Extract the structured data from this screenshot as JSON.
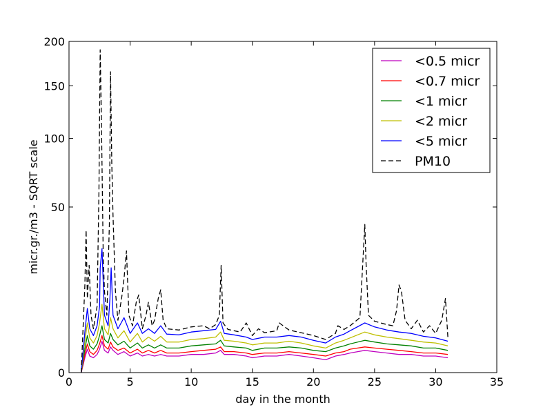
{
  "chart_data": {
    "type": "line",
    "title": "",
    "xlabel": "day in the month",
    "ylabel": "micr.gr./m3 - SQRT scale",
    "xlim": [
      0,
      35
    ],
    "ylim": [
      0,
      200
    ],
    "y_scale": "sqrt",
    "grid": false,
    "legend_position": "top-right",
    "x_ticks": [
      "0",
      "5",
      "10",
      "15",
      "20",
      "25",
      "30",
      "35"
    ],
    "y_ticks": [
      "0",
      "50",
      "100",
      "150",
      "200"
    ],
    "x_tick_values": [
      0,
      5,
      10,
      15,
      20,
      25,
      30,
      35
    ],
    "y_tick_values": [
      0,
      50,
      100,
      150,
      200
    ],
    "series": [
      {
        "name": "<0.5 micr",
        "color": "#bf00bf",
        "style": "solid",
        "points": [
          [
            1.0,
            0
          ],
          [
            1.3,
            0.4
          ],
          [
            1.5,
            1.0
          ],
          [
            1.7,
            0.5
          ],
          [
            2.0,
            0.4
          ],
          [
            2.3,
            0.6
          ],
          [
            2.5,
            1.0
          ],
          [
            2.7,
            1.8
          ],
          [
            2.9,
            0.9
          ],
          [
            3.2,
            0.7
          ],
          [
            3.4,
            1.2
          ],
          [
            3.6,
            0.9
          ],
          [
            4.0,
            0.6
          ],
          [
            4.5,
            0.8
          ],
          [
            5.0,
            0.5
          ],
          [
            5.6,
            0.7
          ],
          [
            6.0,
            0.5
          ],
          [
            6.5,
            0.6
          ],
          [
            7.0,
            0.5
          ],
          [
            7.5,
            0.6
          ],
          [
            8.0,
            0.5
          ],
          [
            9.0,
            0.5
          ],
          [
            10.0,
            0.6
          ],
          [
            11.0,
            0.6
          ],
          [
            12.0,
            0.7
          ],
          [
            12.4,
            0.9
          ],
          [
            12.7,
            0.6
          ],
          [
            13.5,
            0.6
          ],
          [
            14.5,
            0.5
          ],
          [
            15.0,
            0.4
          ],
          [
            16.0,
            0.5
          ],
          [
            17.0,
            0.5
          ],
          [
            18.0,
            0.6
          ],
          [
            19.0,
            0.5
          ],
          [
            20.0,
            0.4
          ],
          [
            21.0,
            0.3
          ],
          [
            21.8,
            0.5
          ],
          [
            22.5,
            0.6
          ],
          [
            23.0,
            0.7
          ],
          [
            24.2,
            0.9
          ],
          [
            25.0,
            0.8
          ],
          [
            26.0,
            0.7
          ],
          [
            27.0,
            0.6
          ],
          [
            28.0,
            0.6
          ],
          [
            29.0,
            0.5
          ],
          [
            30.0,
            0.5
          ],
          [
            31.0,
            0.4
          ]
        ]
      },
      {
        "name": "<0.7 micr",
        "color": "#ff0000",
        "style": "solid",
        "points": [
          [
            1.0,
            0
          ],
          [
            1.3,
            0.6
          ],
          [
            1.5,
            1.5
          ],
          [
            1.7,
            0.8
          ],
          [
            2.0,
            0.6
          ],
          [
            2.3,
            0.9
          ],
          [
            2.5,
            1.5
          ],
          [
            2.7,
            2.5
          ],
          [
            2.9,
            1.3
          ],
          [
            3.2,
            1.0
          ],
          [
            3.4,
            1.7
          ],
          [
            3.6,
            1.2
          ],
          [
            4.0,
            0.9
          ],
          [
            4.5,
            1.1
          ],
          [
            5.0,
            0.7
          ],
          [
            5.6,
            1.0
          ],
          [
            6.0,
            0.7
          ],
          [
            6.5,
            0.9
          ],
          [
            7.0,
            0.7
          ],
          [
            7.5,
            0.9
          ],
          [
            8.0,
            0.7
          ],
          [
            9.0,
            0.7
          ],
          [
            10.0,
            0.8
          ],
          [
            11.0,
            0.9
          ],
          [
            12.0,
            1.0
          ],
          [
            12.4,
            1.2
          ],
          [
            12.7,
            0.8
          ],
          [
            13.5,
            0.8
          ],
          [
            14.5,
            0.7
          ],
          [
            15.0,
            0.6
          ],
          [
            16.0,
            0.7
          ],
          [
            17.0,
            0.7
          ],
          [
            18.0,
            0.8
          ],
          [
            19.0,
            0.7
          ],
          [
            20.0,
            0.6
          ],
          [
            21.0,
            0.5
          ],
          [
            21.8,
            0.7
          ],
          [
            22.5,
            0.8
          ],
          [
            23.0,
            1.0
          ],
          [
            24.2,
            1.2
          ],
          [
            25.0,
            1.1
          ],
          [
            26.0,
            1.0
          ],
          [
            27.0,
            0.9
          ],
          [
            28.0,
            0.8
          ],
          [
            29.0,
            0.7
          ],
          [
            30.0,
            0.7
          ],
          [
            31.0,
            0.6
          ]
        ]
      },
      {
        "name": "<1 micr",
        "color": "#008000",
        "style": "solid",
        "points": [
          [
            1.0,
            0
          ],
          [
            1.3,
            1.0
          ],
          [
            1.5,
            2.5
          ],
          [
            1.7,
            1.3
          ],
          [
            2.0,
            1.0
          ],
          [
            2.3,
            1.5
          ],
          [
            2.5,
            2.5
          ],
          [
            2.7,
            4.0
          ],
          [
            2.9,
            2.0
          ],
          [
            3.2,
            1.6
          ],
          [
            3.4,
            2.8
          ],
          [
            3.6,
            2.0
          ],
          [
            4.0,
            1.4
          ],
          [
            4.5,
            1.8
          ],
          [
            5.0,
            1.1
          ],
          [
            5.6,
            1.6
          ],
          [
            6.0,
            1.1
          ],
          [
            6.5,
            1.4
          ],
          [
            7.0,
            1.1
          ],
          [
            7.5,
            1.4
          ],
          [
            8.0,
            1.1
          ],
          [
            9.0,
            1.1
          ],
          [
            10.0,
            1.3
          ],
          [
            11.0,
            1.4
          ],
          [
            12.0,
            1.5
          ],
          [
            12.4,
            1.9
          ],
          [
            12.7,
            1.3
          ],
          [
            13.5,
            1.2
          ],
          [
            14.5,
            1.1
          ],
          [
            15.0,
            0.9
          ],
          [
            16.0,
            1.1
          ],
          [
            17.0,
            1.1
          ],
          [
            18.0,
            1.2
          ],
          [
            19.0,
            1.1
          ],
          [
            20.0,
            0.9
          ],
          [
            21.0,
            0.8
          ],
          [
            21.8,
            1.1
          ],
          [
            22.5,
            1.3
          ],
          [
            23.0,
            1.5
          ],
          [
            24.2,
            1.9
          ],
          [
            25.0,
            1.7
          ],
          [
            26.0,
            1.5
          ],
          [
            27.0,
            1.4
          ],
          [
            28.0,
            1.3
          ],
          [
            29.0,
            1.1
          ],
          [
            30.0,
            1.1
          ],
          [
            31.0,
            0.9
          ]
        ]
      },
      {
        "name": "<2 micr",
        "color": "#bfbf00",
        "style": "solid",
        "points": [
          [
            1.0,
            0
          ],
          [
            1.3,
            1.8
          ],
          [
            1.5,
            4.5
          ],
          [
            1.7,
            2.2
          ],
          [
            2.0,
            1.6
          ],
          [
            2.3,
            2.5
          ],
          [
            2.5,
            4.5
          ],
          [
            2.7,
            8.5
          ],
          [
            2.9,
            3.5
          ],
          [
            3.2,
            2.6
          ],
          [
            3.4,
            5.5
          ],
          [
            3.6,
            3.5
          ],
          [
            4.0,
            2.2
          ],
          [
            4.5,
            3.2
          ],
          [
            5.0,
            1.7
          ],
          [
            5.6,
            2.8
          ],
          [
            6.0,
            1.7
          ],
          [
            6.5,
            2.3
          ],
          [
            7.0,
            1.8
          ],
          [
            7.5,
            2.4
          ],
          [
            8.0,
            1.7
          ],
          [
            9.0,
            1.7
          ],
          [
            10.0,
            2.0
          ],
          [
            11.0,
            2.1
          ],
          [
            12.0,
            2.3
          ],
          [
            12.4,
            3.0
          ],
          [
            12.7,
            1.9
          ],
          [
            13.5,
            1.8
          ],
          [
            14.5,
            1.6
          ],
          [
            15.0,
            1.4
          ],
          [
            16.0,
            1.6
          ],
          [
            17.0,
            1.6
          ],
          [
            18.0,
            1.8
          ],
          [
            19.0,
            1.6
          ],
          [
            20.0,
            1.3
          ],
          [
            21.0,
            1.1
          ],
          [
            21.8,
            1.6
          ],
          [
            22.5,
            1.9
          ],
          [
            23.0,
            2.2
          ],
          [
            24.2,
            3.0
          ],
          [
            25.0,
            2.6
          ],
          [
            26.0,
            2.3
          ],
          [
            27.0,
            2.1
          ],
          [
            28.0,
            1.9
          ],
          [
            29.0,
            1.7
          ],
          [
            30.0,
            1.6
          ],
          [
            31.0,
            1.3
          ]
        ]
      },
      {
        "name": "<5 micr",
        "color": "#0000ff",
        "style": "solid",
        "points": [
          [
            1.0,
            0
          ],
          [
            1.3,
            3.0
          ],
          [
            1.5,
            7.5
          ],
          [
            1.7,
            3.5
          ],
          [
            2.0,
            2.5
          ],
          [
            2.3,
            4.0
          ],
          [
            2.5,
            8.0
          ],
          [
            2.55,
            20.0
          ],
          [
            2.7,
            28.0
          ],
          [
            2.9,
            6.0
          ],
          [
            3.2,
            4.0
          ],
          [
            3.35,
            10.0
          ],
          [
            3.45,
            20.0
          ],
          [
            3.6,
            6.0
          ],
          [
            4.0,
            3.5
          ],
          [
            4.5,
            5.5
          ],
          [
            5.0,
            2.8
          ],
          [
            5.6,
            4.5
          ],
          [
            6.0,
            2.8
          ],
          [
            6.5,
            3.5
          ],
          [
            7.0,
            2.8
          ],
          [
            7.5,
            4.0
          ],
          [
            8.0,
            2.7
          ],
          [
            9.0,
            2.6
          ],
          [
            10.0,
            3.0
          ],
          [
            11.0,
            3.2
          ],
          [
            12.0,
            3.4
          ],
          [
            12.4,
            4.8
          ],
          [
            12.7,
            2.8
          ],
          [
            13.5,
            2.6
          ],
          [
            14.5,
            2.3
          ],
          [
            15.0,
            2.0
          ],
          [
            16.0,
            2.3
          ],
          [
            17.0,
            2.3
          ],
          [
            18.0,
            2.5
          ],
          [
            19.0,
            2.3
          ],
          [
            20.0,
            1.9
          ],
          [
            21.0,
            1.6
          ],
          [
            21.8,
            2.3
          ],
          [
            22.5,
            2.7
          ],
          [
            23.0,
            3.2
          ],
          [
            24.2,
            4.5
          ],
          [
            25.0,
            3.8
          ],
          [
            26.0,
            3.3
          ],
          [
            27.0,
            3.0
          ],
          [
            28.0,
            2.8
          ],
          [
            29.0,
            2.4
          ],
          [
            30.0,
            2.2
          ],
          [
            31.0,
            1.8
          ]
        ]
      },
      {
        "name": "PM10",
        "color": "#000000",
        "style": "dashed",
        "points": [
          [
            1.0,
            0
          ],
          [
            1.3,
            14.0
          ],
          [
            1.4,
            37.0
          ],
          [
            1.5,
            10.0
          ],
          [
            1.65,
            21.0
          ],
          [
            1.8,
            6.0
          ],
          [
            2.0,
            3.5
          ],
          [
            2.3,
            8.0
          ],
          [
            2.45,
            60.0
          ],
          [
            2.55,
            190.0
          ],
          [
            2.65,
            120.0
          ],
          [
            2.8,
            25.0
          ],
          [
            2.9,
            12.0
          ],
          [
            3.1,
            6.0
          ],
          [
            3.3,
            40.0
          ],
          [
            3.4,
            165.0
          ],
          [
            3.5,
            80.0
          ],
          [
            3.6,
            45.0
          ],
          [
            3.8,
            12.0
          ],
          [
            4.0,
            5.0
          ],
          [
            4.3,
            10.0
          ],
          [
            4.5,
            16.0
          ],
          [
            4.7,
            27.0
          ],
          [
            4.9,
            6.0
          ],
          [
            5.2,
            4.0
          ],
          [
            5.5,
            9.0
          ],
          [
            5.7,
            11.0
          ],
          [
            6.0,
            3.5
          ],
          [
            6.3,
            6.0
          ],
          [
            6.5,
            9.0
          ],
          [
            6.8,
            4.0
          ],
          [
            7.0,
            5.0
          ],
          [
            7.3,
            10.0
          ],
          [
            7.5,
            12.5
          ],
          [
            7.7,
            5.0
          ],
          [
            8.0,
            3.5
          ],
          [
            9.0,
            3.3
          ],
          [
            10.0,
            3.8
          ],
          [
            11.0,
            4.0
          ],
          [
            11.5,
            3.5
          ],
          [
            12.0,
            4.2
          ],
          [
            12.3,
            6.0
          ],
          [
            12.45,
            21.0
          ],
          [
            12.6,
            4.5
          ],
          [
            13.0,
            3.4
          ],
          [
            14.0,
            3.0
          ],
          [
            14.5,
            4.5
          ],
          [
            15.0,
            2.5
          ],
          [
            15.5,
            3.5
          ],
          [
            16.0,
            2.9
          ],
          [
            17.0,
            3.2
          ],
          [
            17.2,
            4.5
          ],
          [
            18.0,
            3.3
          ],
          [
            19.0,
            2.9
          ],
          [
            20.0,
            2.5
          ],
          [
            21.0,
            2.0
          ],
          [
            21.8,
            2.8
          ],
          [
            22.0,
            4.0
          ],
          [
            22.5,
            3.4
          ],
          [
            23.0,
            4.0
          ],
          [
            23.8,
            5.5
          ],
          [
            24.2,
            40.0
          ],
          [
            24.3,
            22.0
          ],
          [
            24.5,
            6.0
          ],
          [
            25.0,
            4.8
          ],
          [
            26.0,
            4.2
          ],
          [
            26.5,
            4.0
          ],
          [
            26.8,
            7.0
          ],
          [
            27.0,
            14.0
          ],
          [
            27.2,
            12.0
          ],
          [
            27.5,
            5.0
          ],
          [
            28.0,
            3.5
          ],
          [
            28.5,
            5.0
          ],
          [
            29.0,
            3.0
          ],
          [
            29.5,
            4.0
          ],
          [
            30.0,
            2.8
          ],
          [
            30.5,
            5.0
          ],
          [
            30.8,
            10.0
          ],
          [
            31.0,
            2.3
          ]
        ]
      }
    ]
  }
}
